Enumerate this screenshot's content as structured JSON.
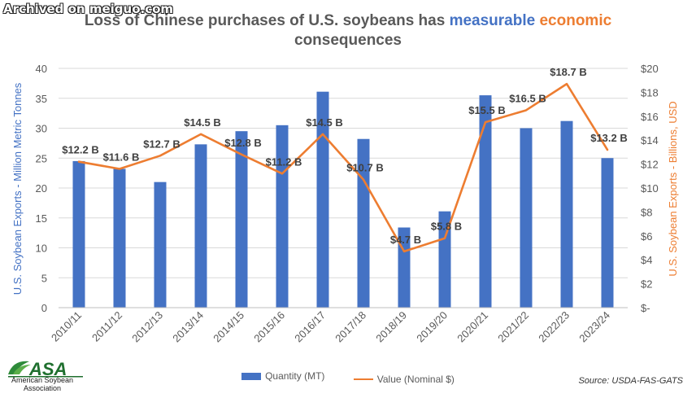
{
  "watermark": "Archived on meiguo.com",
  "title": {
    "part1": "Loss of Chinese purchases of U.S. soybeans has ",
    "highlight1": "measurable",
    "highlight2": "economic",
    "line2": "consequences"
  },
  "logo": {
    "mark": "ASA",
    "name_line1": "American Soybean",
    "name_line2": "Association"
  },
  "source": "Source: USDA-FAS-GATS",
  "chart_data": {
    "type": "bar",
    "categories": [
      "2010/11",
      "2011/12",
      "2012/13",
      "2013/14",
      "2014/15",
      "2015/16",
      "2016/17",
      "2017/18",
      "2018/19",
      "2019/20",
      "2020/21",
      "2021/22",
      "2022/23",
      "2023/24"
    ],
    "series": [
      {
        "name": "Quantity (MT)",
        "type": "bar",
        "axis": "left",
        "color": "#4472C4",
        "values": [
          24.5,
          23.2,
          21.0,
          27.3,
          29.5,
          30.5,
          36.1,
          28.2,
          13.4,
          16.1,
          35.5,
          30.0,
          31.2,
          25.0
        ]
      },
      {
        "name": "Value (Nominal $)",
        "type": "line",
        "axis": "right",
        "color": "#ED7D31",
        "values": [
          12.2,
          11.6,
          12.7,
          14.5,
          12.8,
          11.2,
          14.5,
          10.7,
          4.7,
          5.8,
          15.5,
          16.5,
          18.7,
          13.2
        ],
        "data_labels": [
          "$12.2 B",
          "$11.6 B",
          "$12.7 B",
          "$14.5 B",
          "$12.8 B",
          "$11.2 B",
          "$14.5 B",
          "$10.7 B",
          "$4.7 B",
          "$5.8 B",
          "$15.5 B",
          "$16.5 B",
          "$18.7 B",
          "$13.2 B"
        ]
      }
    ],
    "ylabel": "U.S. Soybean Exports - Million Metric Tonnes",
    "y2label": "U.S. Soybean Exports - Billions, USD",
    "ylim": [
      0,
      40
    ],
    "y2lim": [
      0,
      20
    ],
    "yticks": [
      "0",
      "5",
      "10",
      "15",
      "20",
      "25",
      "30",
      "35",
      "40"
    ],
    "y2ticks": [
      "$-",
      "$2",
      "$4",
      "$6",
      "$8",
      "$10",
      "$12",
      "$14",
      "$16",
      "$18",
      "$20"
    ],
    "grid": true,
    "legend": "bottom"
  }
}
